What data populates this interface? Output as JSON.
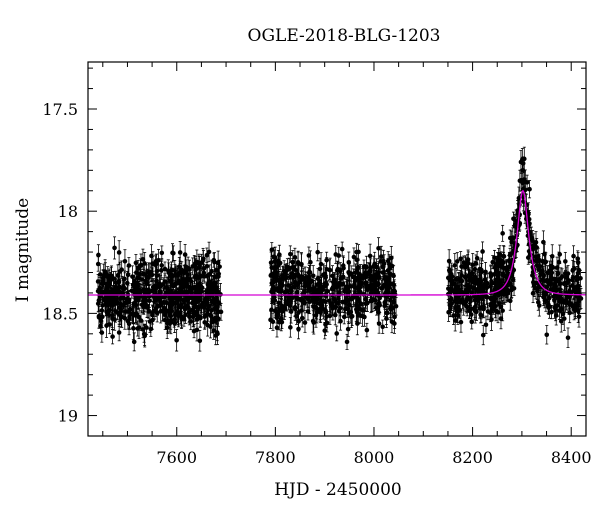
{
  "chart_data": {
    "type": "scatter",
    "title": "OGLE-2018-BLG-1203",
    "xlabel": "HJD - 2450000",
    "ylabel": "I magnitude",
    "xlim": [
      7420,
      8430
    ],
    "ylim": [
      19.1,
      17.27
    ],
    "y_inverted": true,
    "x_ticks": [
      7600,
      7800,
      8000,
      8200,
      8400
    ],
    "y_ticks": [
      17.5,
      18,
      18.5,
      19
    ],
    "x_tick_labels": [
      "7600",
      "7800",
      "8000",
      "8200",
      "8400"
    ],
    "y_tick_labels": [
      "17.5",
      "18",
      "18.5",
      "19"
    ],
    "grid": false,
    "colors": {
      "data": "#000000",
      "model": "#d400d4"
    },
    "series": [
      {
        "kind": "observations",
        "segments": [
          {
            "x_range": [
              7440,
              7690
            ],
            "baseline_mag": 18.41,
            "scatter_mag": 0.13,
            "error_bar_mag": 0.045,
            "n_points": 560
          },
          {
            "x_range": [
              7790,
              8045
            ],
            "baseline_mag": 18.39,
            "scatter_mag": 0.12,
            "error_bar_mag": 0.045,
            "n_points": 480
          },
          {
            "x_range": [
              8150,
              8420
            ],
            "baseline_mag": 18.39,
            "scatter_mag": 0.11,
            "error_bar_mag": 0.045,
            "n_points": 520
          }
        ]
      },
      {
        "kind": "model",
        "baseline_mag": 18.41,
        "peak_mag": 17.9,
        "t0": 8302,
        "tE": 22,
        "u0": 0.58
      }
    ]
  }
}
